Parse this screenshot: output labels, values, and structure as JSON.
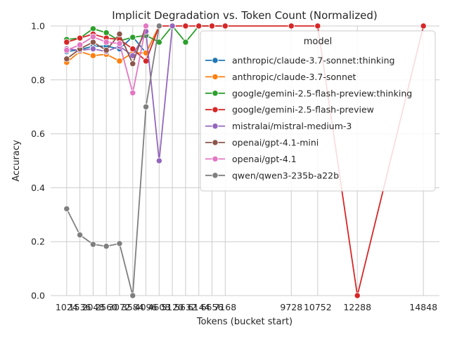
{
  "chart_data": {
    "type": "line",
    "title": "Implicit Degradation vs. Token Count (Normalized)",
    "xlabel": "Tokens (bucket start)",
    "ylabel": "Accuracy",
    "ylim": [
      0,
      1
    ],
    "yticks": [
      "0.0",
      "0.2",
      "0.4",
      "0.6",
      "0.8",
      "1.0"
    ],
    "x_categories": [
      1024,
      1536,
      2048,
      2560,
      3072,
      3584,
      4096,
      4608,
      5120,
      5632,
      6144,
      6656,
      7168,
      9728,
      10752,
      12288,
      14848
    ],
    "x_tick_labels": [
      "1024",
      "1536",
      "2048",
      "2560",
      "3072",
      "3584",
      "4096",
      "4608",
      "5120",
      "5632",
      "6144",
      "6656",
      "7168",
      "9728",
      "10752",
      "12288",
      "14848"
    ],
    "grid": true,
    "legend_title": "model",
    "legend_position": "upper right",
    "series": [
      {
        "name": "anthropic/claude-3.7-sonnet:thinking",
        "color": "#1f77b4",
        "points": [
          [
            1024,
            0.905
          ],
          [
            1536,
            0.912
          ],
          [
            2048,
            0.925
          ],
          [
            2560,
            0.925
          ],
          [
            3072,
            0.915
          ],
          [
            3584,
            0.96
          ],
          [
            4096,
            0.9
          ],
          [
            4608,
            1.0
          ]
        ]
      },
      {
        "name": "anthropic/claude-3.7-sonnet",
        "color": "#ff7f0e",
        "points": [
          [
            1024,
            0.865
          ],
          [
            1536,
            0.905
          ],
          [
            2048,
            0.89
          ],
          [
            2560,
            0.895
          ],
          [
            3072,
            0.87
          ],
          [
            3584,
            0.9
          ],
          [
            4096,
            0.9
          ],
          [
            4608,
            1.0
          ]
        ]
      },
      {
        "name": "google/gemini-2.5-flash-preview:thinking",
        "color": "#2ca02c",
        "points": [
          [
            1024,
            0.95
          ],
          [
            1536,
            0.955
          ],
          [
            2048,
            0.99
          ],
          [
            2560,
            0.975
          ],
          [
            3072,
            0.945
          ],
          [
            3584,
            0.958
          ],
          [
            4096,
            0.965
          ],
          [
            4608,
            0.94
          ],
          [
            5120,
            1.0
          ],
          [
            5632,
            0.94
          ],
          [
            6144,
            1.0
          ],
          [
            6656,
            1.0
          ],
          [
            7168,
            1.0
          ]
        ]
      },
      {
        "name": "google/gemini-2.5-flash-preview",
        "color": "#d62728",
        "points": [
          [
            1024,
            0.94
          ],
          [
            1536,
            0.955
          ],
          [
            2048,
            0.97
          ],
          [
            2560,
            0.955
          ],
          [
            3072,
            0.95
          ],
          [
            3584,
            0.915
          ],
          [
            4096,
            0.87
          ],
          [
            4608,
            1.0
          ],
          [
            5120,
            1.0
          ],
          [
            5632,
            1.0
          ],
          [
            6144,
            1.0
          ],
          [
            6656,
            1.0
          ],
          [
            7168,
            1.0
          ],
          [
            9728,
            1.0
          ],
          [
            10752,
            1.0
          ],
          [
            12288,
            0.0
          ],
          [
            14848,
            1.0
          ]
        ]
      },
      {
        "name": "mistralai/mistral-medium-3",
        "color": "#9467bd",
        "points": [
          [
            1024,
            0.915
          ],
          [
            1536,
            0.91
          ],
          [
            2048,
            0.915
          ],
          [
            2560,
            0.905
          ],
          [
            3072,
            0.925
          ],
          [
            3584,
            0.89
          ],
          [
            4096,
            0.98
          ],
          [
            4608,
            0.5
          ],
          [
            5120,
            1.0
          ]
        ]
      },
      {
        "name": "openai/gpt-4.1-mini",
        "color": "#8c564b",
        "points": [
          [
            1024,
            0.878
          ],
          [
            1536,
            0.915
          ],
          [
            2048,
            0.94
          ],
          [
            2560,
            0.91
          ],
          [
            3072,
            0.97
          ],
          [
            3584,
            0.86
          ],
          [
            4096,
            1.0
          ]
        ]
      },
      {
        "name": "openai/gpt-4.1",
        "color": "#e377c2",
        "points": [
          [
            1024,
            0.91
          ],
          [
            1536,
            0.93
          ],
          [
            2048,
            0.96
          ],
          [
            2560,
            0.94
          ],
          [
            3072,
            0.935
          ],
          [
            3584,
            0.752
          ],
          [
            4096,
            1.0
          ]
        ]
      },
      {
        "name": "qwen/qwen3-235b-a22b",
        "color": "#7f7f7f",
        "points": [
          [
            1024,
            0.322
          ],
          [
            1536,
            0.225
          ],
          [
            2048,
            0.19
          ],
          [
            2560,
            0.183
          ],
          [
            3072,
            0.193
          ],
          [
            3584,
            0.0
          ],
          [
            4096,
            0.7
          ],
          [
            4608,
            1.0
          ]
        ]
      }
    ]
  }
}
